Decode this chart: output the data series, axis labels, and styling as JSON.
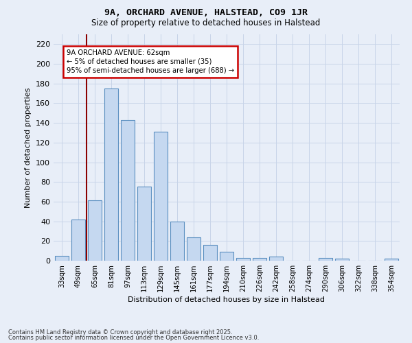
{
  "title": "9A, ORCHARD AVENUE, HALSTEAD, CO9 1JR",
  "subtitle": "Size of property relative to detached houses in Halstead",
  "xlabel": "Distribution of detached houses by size in Halstead",
  "ylabel": "Number of detached properties",
  "bar_labels": [
    "33sqm",
    "49sqm",
    "65sqm",
    "81sqm",
    "97sqm",
    "113sqm",
    "129sqm",
    "145sqm",
    "161sqm",
    "177sqm",
    "194sqm",
    "210sqm",
    "226sqm",
    "242sqm",
    "258sqm",
    "274sqm",
    "290sqm",
    "306sqm",
    "322sqm",
    "338sqm",
    "354sqm"
  ],
  "bar_values": [
    5,
    42,
    61,
    175,
    143,
    75,
    131,
    40,
    24,
    16,
    9,
    3,
    3,
    4,
    0,
    0,
    3,
    2,
    0,
    0,
    2
  ],
  "bar_color": "#c5d8f0",
  "bar_edge_color": "#5a8fc0",
  "grid_color": "#c8d4e8",
  "background_color": "#e8eef8",
  "red_line_x": 1.5,
  "annotation_text": "9A ORCHARD AVENUE: 62sqm\n← 5% of detached houses are smaller (35)\n95% of semi-detached houses are larger (688) →",
  "annotation_box_color": "#ffffff",
  "annotation_box_edge": "#cc0000",
  "footnote1": "Contains HM Land Registry data © Crown copyright and database right 2025.",
  "footnote2": "Contains public sector information licensed under the Open Government Licence v3.0.",
  "ylim": [
    0,
    230
  ],
  "yticks": [
    0,
    20,
    40,
    60,
    80,
    100,
    120,
    140,
    160,
    180,
    200,
    220
  ]
}
